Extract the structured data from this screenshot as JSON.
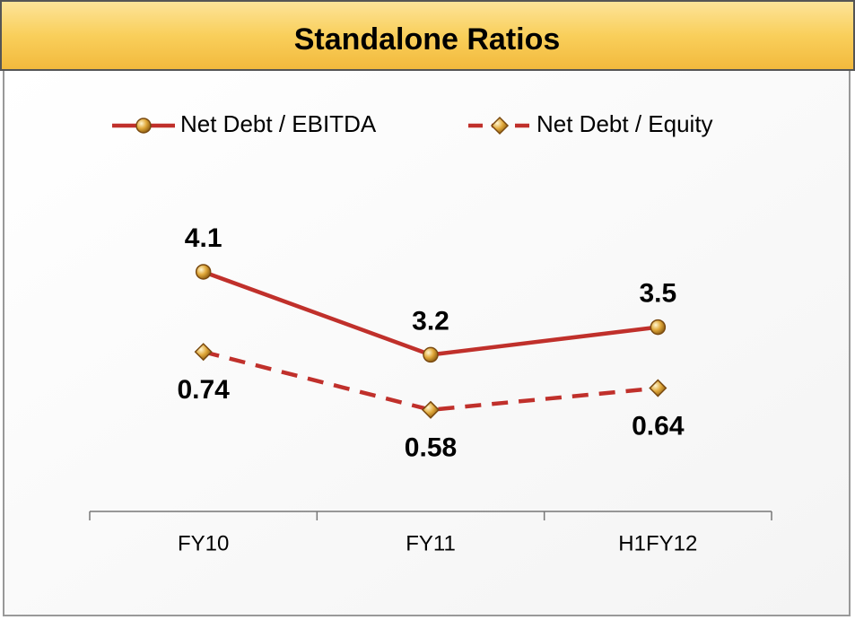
{
  "chart_data": {
    "type": "line",
    "title": "Standalone Ratios",
    "categories": [
      "FY10",
      "FY11",
      "H1FY12"
    ],
    "series": [
      {
        "name": "Net Debt / EBITDA",
        "color": "#c0302b",
        "line_style": "solid",
        "marker": "circle",
        "label_position": "above",
        "values": [
          4.1,
          3.2,
          3.5
        ]
      },
      {
        "name": "Net Debt / Equity",
        "color": "#c0302b",
        "line_style": "dashed",
        "marker": "diamond",
        "label_position": "below",
        "axis": "y2",
        "values": [
          0.74,
          0.58,
          0.64
        ]
      }
    ],
    "ylim": [
      1.5,
      5.2
    ],
    "y2lim": [
      0.3,
      1.24
    ],
    "legend": "top"
  }
}
